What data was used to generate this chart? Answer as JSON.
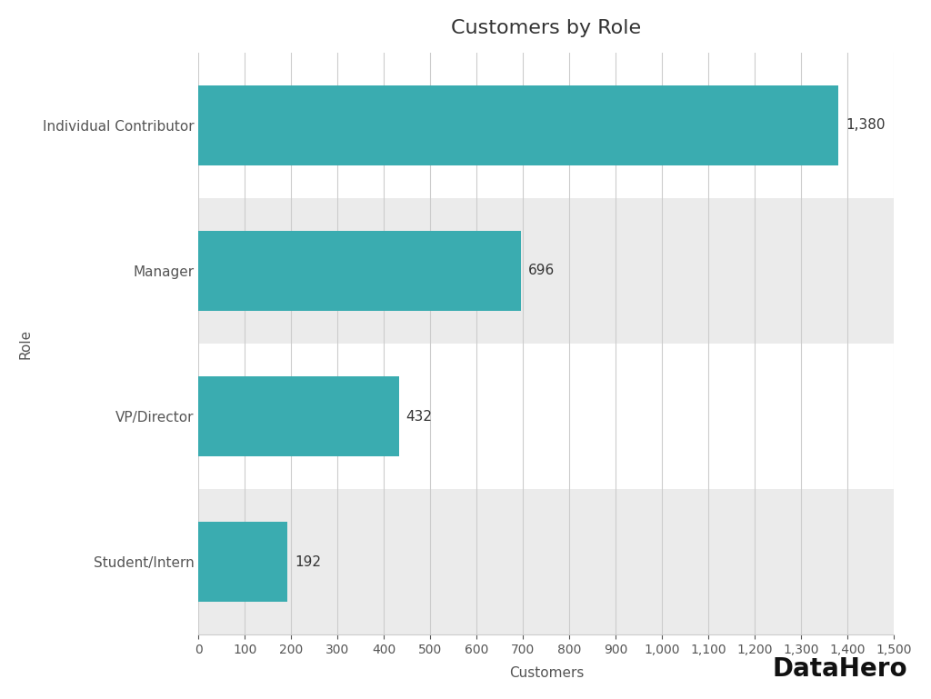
{
  "title": "Customers by Role",
  "categories": [
    "Student/Intern",
    "VP/Director",
    "Manager",
    "Individual Contributor"
  ],
  "values": [
    192,
    432,
    696,
    1380
  ],
  "bar_color": "#3aacb0",
  "xlabel": "Customers",
  "ylabel": "Role",
  "xlim": [
    0,
    1500
  ],
  "xtick_step": 100,
  "background_color": "#ffffff",
  "stripe_color": "#ebebeb",
  "grid_color": "#cccccc",
  "title_fontsize": 16,
  "label_fontsize": 11,
  "tick_fontsize": 10,
  "value_labels": [
    "192",
    "432",
    "696",
    "1,380"
  ],
  "stripe_indices": [
    0,
    2
  ],
  "datahero_text": "DataHero"
}
